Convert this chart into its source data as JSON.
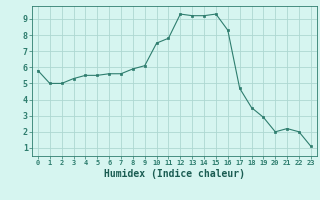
{
  "x": [
    0,
    1,
    2,
    3,
    4,
    5,
    6,
    7,
    8,
    9,
    10,
    11,
    12,
    13,
    14,
    15,
    16,
    17,
    18,
    19,
    20,
    21,
    22,
    23
  ],
  "y": [
    5.8,
    5.0,
    5.0,
    5.3,
    5.5,
    5.5,
    5.6,
    5.6,
    5.9,
    6.1,
    7.5,
    7.8,
    9.3,
    9.2,
    9.2,
    9.3,
    8.3,
    4.7,
    3.5,
    2.9,
    2.0,
    2.2,
    2.0,
    1.1
  ],
  "xlabel": "Humidex (Indice chaleur)",
  "ylim": [
    0.5,
    9.8
  ],
  "xlim": [
    -0.5,
    23.5
  ],
  "line_color": "#2e7d6e",
  "marker_color": "#2e7d6e",
  "bg_color": "#d6f5f0",
  "grid_color": "#aed8d2",
  "tick_color": "#2e7d6e",
  "label_color": "#1a5c52",
  "xlabel_fontsize": 7,
  "ytick_vals": [
    1,
    2,
    3,
    4,
    5,
    6,
    7,
    8,
    9
  ],
  "ytick_labels": [
    "1",
    "2",
    "3",
    "4",
    "5",
    "6",
    "7",
    "8",
    "9"
  ],
  "xtick_labels": [
    "0",
    "1",
    "2",
    "3",
    "4",
    "5",
    "6",
    "7",
    "8",
    "9",
    "10",
    "11",
    "12",
    "13",
    "14",
    "15",
    "16",
    "17",
    "18",
    "19",
    "20",
    "21",
    "22",
    "23"
  ]
}
